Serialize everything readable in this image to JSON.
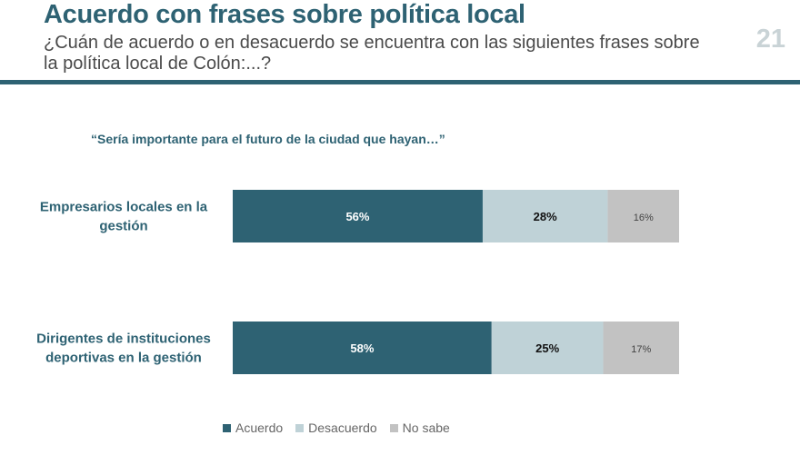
{
  "header": {
    "title": "Acuerdo con frases sobre política local",
    "subtitle": "¿Cuán de acuerdo o en desacuerdo se encuentra con las siguientes frases sobre la política local de Colón:...?",
    "page_number": "21"
  },
  "colors": {
    "acuerdo": "#2e6273",
    "desacuerdo": "#bfd2d7",
    "no_sabe": "#c2c2c2",
    "accent": "#2e6273"
  },
  "chart_data": {
    "type": "bar",
    "orientation": "horizontal",
    "stacked": true,
    "title": "“Sería importante para el futuro de la ciudad que hayan…”",
    "categories": [
      [
        "Empresarios locales en la",
        "gestión"
      ],
      [
        "Dirigentes de instituciones",
        "deportivas en la gestión"
      ]
    ],
    "series": [
      {
        "name": "Acuerdo",
        "values": [
          56,
          58
        ],
        "labels": [
          "56%",
          "58%"
        ]
      },
      {
        "name": "Desacuerdo",
        "values": [
          28,
          25
        ],
        "labels": [
          "28%",
          "25%"
        ]
      },
      {
        "name": "No sabe",
        "values": [
          16,
          17
        ],
        "labels": [
          "16%",
          "17%"
        ]
      }
    ],
    "xlim": [
      0,
      100
    ],
    "grid": false,
    "legend_position": "bottom"
  }
}
